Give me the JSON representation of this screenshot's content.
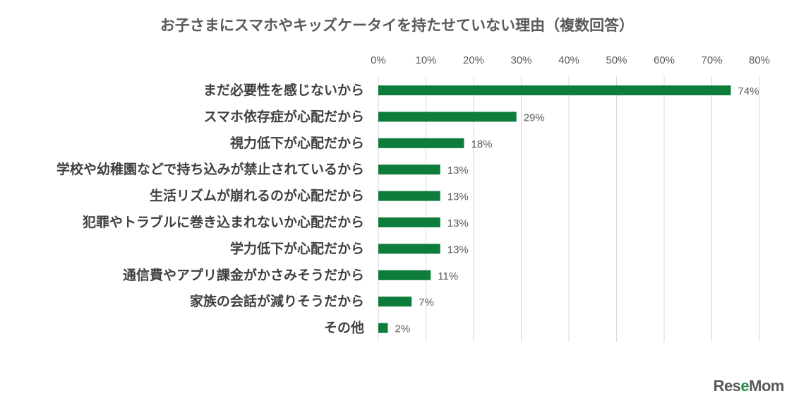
{
  "chart_data": {
    "type": "bar",
    "orientation": "horizontal",
    "title": "お子さまにスマホやキッズケータイを持たせていない理由（複数回答）",
    "categories": [
      "まだ必要性を感じないから",
      "スマホ依存症が心配だから",
      "視力低下が心配だから",
      "学校や幼稚園などで持ち込みが禁止されているから",
      "生活リズムが崩れるのが心配だから",
      "犯罪やトラブルに巻き込まれないか心配だから",
      "学力低下が心配だから",
      "通信費やアプリ課金がかさみそうだから",
      "家族の会話が減りそうだから",
      "その他"
    ],
    "values": [
      74,
      29,
      18,
      13,
      13,
      13,
      13,
      11,
      7,
      2
    ],
    "value_labels": [
      "74%",
      "29%",
      "18%",
      "13%",
      "13%",
      "13%",
      "13%",
      "11%",
      "7%",
      "2%"
    ],
    "x_ticks": [
      "0%",
      "10%",
      "20%",
      "30%",
      "40%",
      "50%",
      "60%",
      "70%",
      "80%"
    ],
    "xlim": [
      0,
      80
    ],
    "axis_position": "top",
    "grid": true,
    "bar_color": "#0e7c3a"
  },
  "watermark": {
    "text_a": "Res",
    "text_b": "e",
    "text_c": "Mom"
  }
}
